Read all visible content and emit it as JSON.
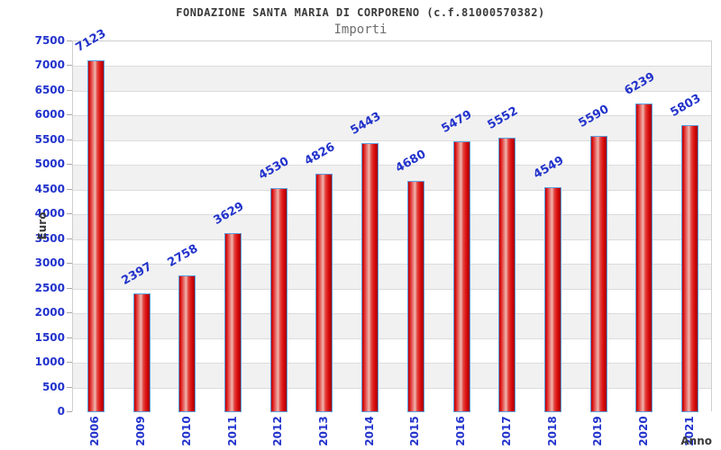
{
  "chart_data": {
    "type": "bar",
    "title": "FONDAZIONE SANTA MARIA DI CORPORENO (c.f.81000570382)",
    "subtitle": "Importi",
    "xlabel": "Anno",
    "ylabel": "Euro",
    "categories": [
      "2006",
      "2009",
      "2010",
      "2011",
      "2012",
      "2013",
      "2014",
      "2015",
      "2016",
      "2017",
      "2018",
      "2019",
      "2020",
      "2021"
    ],
    "values": [
      7123,
      2397,
      2758,
      3629,
      4530,
      4826,
      5443,
      4680,
      5479,
      5552,
      4549,
      5590,
      6239,
      5803
    ],
    "ylim": [
      0,
      7500
    ],
    "ytick_step": 500,
    "grid": "horizontal gridlines with alternating white/gray row bands",
    "legend": "none",
    "bar_value_labels": "rotated -30deg above each bar, blue",
    "x_tick_labels": "rotated -90deg, blue",
    "colors": {
      "bar_fill_dark": "#b70000",
      "bar_fill_highlight": "#f0b3ac",
      "bar_stroke": "#5f9fe0",
      "value_text": "#2233cc",
      "title_text": "#3a3a3a",
      "subtitle_text": "#6e6e6e",
      "axis_title_text": "#3a3a3a",
      "band_gray": "#f1f1f1",
      "gridline": "#dcdcdc",
      "plot_border": "#cfcfcf"
    }
  }
}
